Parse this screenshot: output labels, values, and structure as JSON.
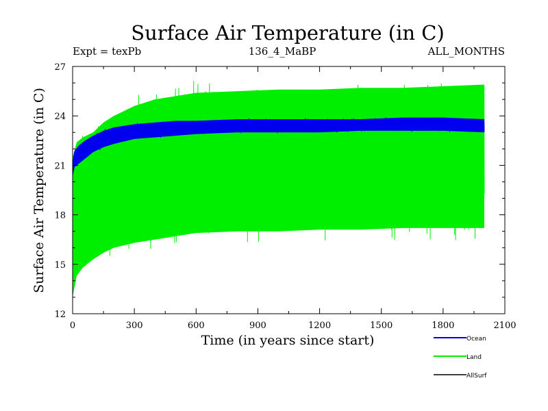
{
  "chart_data": {
    "type": "line",
    "title": "Surface Air Temperature (in C)",
    "subtitle_left": "Expt = texPb",
    "subtitle_center": "136_4_MaBP",
    "subtitle_right": "ALL_MONTHS",
    "xlabel": "Time (in years since start)",
    "ylabel": "Surface Air Temperature (in C)",
    "xlim": [
      0,
      2100
    ],
    "ylim": [
      12,
      27
    ],
    "x_ticks": [
      "0",
      "300",
      "600",
      "900",
      "1200",
      "1500",
      "1800",
      "2100"
    ],
    "y_ticks": [
      "12",
      "15",
      "18",
      "21",
      "24",
      "27"
    ],
    "x_tick_values": [
      0,
      300,
      600,
      900,
      1200,
      1500,
      1800,
      2100
    ],
    "y_tick_values": [
      12,
      15,
      18,
      21,
      24,
      27
    ],
    "series": [
      {
        "name": "Land",
        "color": "#00ee00",
        "x": [
          0,
          20,
          50,
          100,
          150,
          200,
          300,
          400,
          500,
          600,
          800,
          1000,
          1200,
          1400,
          1600,
          1800,
          2000
        ],
        "low": [
          13.0,
          14.3,
          14.8,
          15.3,
          15.7,
          16.0,
          16.3,
          16.5,
          16.7,
          16.9,
          17.0,
          17.0,
          17.1,
          17.1,
          17.2,
          17.2,
          17.2
        ],
        "high": [
          21.5,
          22.4,
          22.7,
          23.0,
          23.6,
          24.0,
          24.6,
          25.0,
          25.2,
          25.4,
          25.5,
          25.6,
          25.6,
          25.7,
          25.7,
          25.8,
          25.9
        ]
      },
      {
        "name": "Ocean",
        "color": "#0000ee",
        "x": [
          0,
          10,
          30,
          60,
          100,
          150,
          200,
          300,
          400,
          500,
          600,
          800,
          1000,
          1200,
          1400,
          1600,
          1800,
          2000
        ],
        "low": [
          20.3,
          20.9,
          21.1,
          21.4,
          21.8,
          22.1,
          22.3,
          22.6,
          22.7,
          22.8,
          22.9,
          23.0,
          23.0,
          23.0,
          23.1,
          23.1,
          23.1,
          23.0
        ],
        "high": [
          21.2,
          21.9,
          22.2,
          22.5,
          22.8,
          23.1,
          23.3,
          23.5,
          23.6,
          23.7,
          23.7,
          23.8,
          23.8,
          23.8,
          23.8,
          23.9,
          23.9,
          23.8
        ]
      },
      {
        "name": "AllSurf",
        "color": "#000000",
        "x": [],
        "values": []
      }
    ],
    "legend": [
      {
        "label": "Ocean",
        "color": "#0000ee"
      },
      {
        "label": "Land",
        "color": "#00ee00"
      },
      {
        "label": "AllSurf",
        "color": "#000000"
      }
    ]
  }
}
